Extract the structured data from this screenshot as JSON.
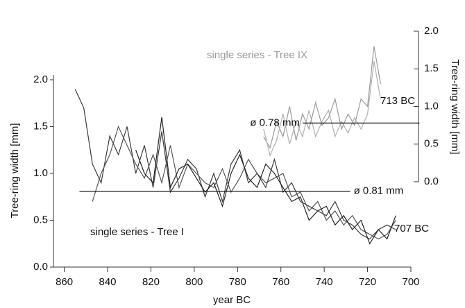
{
  "chart_data": {
    "type": "line",
    "xlabel": "year BC",
    "ylabel": "Tree-ring width [mm]",
    "y2label": "Tree-ring width [mm]",
    "xlim": [
      865,
      700
    ],
    "xticks": [
      860,
      840,
      820,
      800,
      780,
      760,
      740,
      720,
      700
    ],
    "ylim": [
      0,
      2
    ],
    "yticks": [
      {
        "value": 0,
        "label": "0.0"
      },
      0.5,
      {
        "value": 1,
        "label": "1.0"
      },
      1.5,
      {
        "value": 2,
        "label": "2.0"
      }
    ],
    "y2lim": [
      0,
      2
    ],
    "y2ticks": [
      {
        "value": 0,
        "label": "0.0"
      },
      0.5,
      {
        "value": 1,
        "label": "1.0"
      },
      1.5,
      {
        "value": 2,
        "label": "2.0"
      }
    ],
    "annotations": [
      "single series - Tree I",
      "single series - Tree IX",
      "707 BC",
      "713 BC"
    ],
    "reference_lines": [
      {
        "label": "ø 0.81 mm",
        "value": 0.81,
        "x": [
          853,
          728
        ]
      },
      {
        "label": "ø 0.78 mm",
        "value": 0.78,
        "axis": "y2",
        "x": [
          750,
          696
        ]
      }
    ],
    "series": [
      {
        "color": "#3a3a3a",
        "x": [
          855,
          851,
          847,
          843,
          839,
          835,
          831,
          827,
          823,
          819,
          815,
          811,
          807,
          803,
          799,
          795,
          791,
          787,
          783,
          779,
          775,
          771,
          767,
          763,
          759,
          755,
          751,
          747,
          743,
          739,
          735,
          731,
          727,
          723,
          719,
          715,
          711,
          707
        ],
        "values": [
          1.9,
          1.7,
          1.1,
          0.9,
          1.4,
          1.2,
          1.5,
          1.0,
          1.3,
          0.85,
          1.45,
          0.8,
          0.95,
          1.15,
          1.05,
          0.75,
          1.0,
          0.7,
          1.1,
          1.25,
          0.9,
          1.0,
          0.85,
          1.15,
          0.8,
          0.9,
          0.7,
          0.65,
          0.6,
          0.55,
          0.7,
          0.5,
          0.45,
          0.35,
          0.3,
          0.4,
          0.45,
          0.4
        ]
      },
      {
        "color": "#555555",
        "x": [
          855,
          851,
          847,
          843,
          839,
          835,
          831,
          827,
          823,
          819,
          815,
          811,
          807,
          803,
          799,
          795,
          791,
          787,
          783,
          779,
          775,
          771,
          767,
          763,
          759,
          755,
          751,
          747,
          743,
          739,
          735,
          731,
          727,
          723,
          719,
          715,
          711,
          707
        ],
        "values": [
          null,
          null,
          0.7,
          1.0,
          1.2,
          1.5,
          1.3,
          1.1,
          0.95,
          1.2,
          0.9,
          1.3,
          0.85,
          1.1,
          1.0,
          0.9,
          0.85,
          1.05,
          0.8,
          0.95,
          1.15,
          1.0,
          0.9,
          0.95,
          1.0,
          0.75,
          0.8,
          0.6,
          0.7,
          0.5,
          0.6,
          0.45,
          0.55,
          0.4,
          0.35,
          0.3,
          0.35,
          0.5
        ]
      },
      {
        "color": "#222222",
        "x": [
          855,
          851,
          847,
          843,
          839,
          835,
          831,
          827,
          823,
          819,
          815,
          811,
          807,
          803,
          799,
          795,
          791,
          787,
          783,
          779,
          775,
          771,
          767,
          763,
          759,
          755,
          751,
          747,
          743,
          739,
          735,
          731,
          727,
          723,
          719,
          715,
          711,
          707
        ],
        "values": [
          null,
          null,
          null,
          null,
          null,
          null,
          null,
          1.25,
          1.0,
          0.9,
          1.6,
          0.85,
          1.05,
          1.1,
          0.95,
          0.8,
          0.9,
          0.65,
          1.0,
          1.2,
          0.95,
          0.85,
          1.1,
          1.0,
          0.85,
          0.7,
          0.75,
          0.5,
          0.6,
          0.65,
          0.45,
          0.55,
          0.4,
          0.5,
          0.25,
          0.4,
          0.3,
          0.55
        ]
      },
      {
        "color": "#999999",
        "axis": "y2",
        "x": [
          768,
          765,
          762,
          759,
          756,
          753,
          750,
          747,
          744,
          741,
          738,
          735,
          732,
          729,
          726,
          723,
          720,
          717,
          714
        ],
        "values": [
          0.6,
          0.45,
          0.8,
          0.6,
          1.0,
          0.55,
          0.9,
          0.7,
          1.05,
          0.75,
          0.85,
          1.1,
          0.7,
          0.9,
          0.75,
          1.1,
          1.0,
          1.8,
          1.3
        ]
      },
      {
        "color": "#b0b0b0",
        "axis": "y2",
        "x": [
          768,
          765,
          762,
          759,
          756,
          753,
          750,
          747,
          744,
          741,
          738,
          735,
          732,
          729,
          726,
          723,
          720,
          717,
          714
        ],
        "values": [
          0.7,
          0.35,
          0.55,
          0.9,
          0.5,
          0.8,
          0.6,
          0.95,
          0.6,
          0.8,
          0.95,
          0.6,
          0.8,
          0.65,
          0.85,
          0.7,
          0.9,
          1.6,
          1.1
        ]
      }
    ]
  }
}
